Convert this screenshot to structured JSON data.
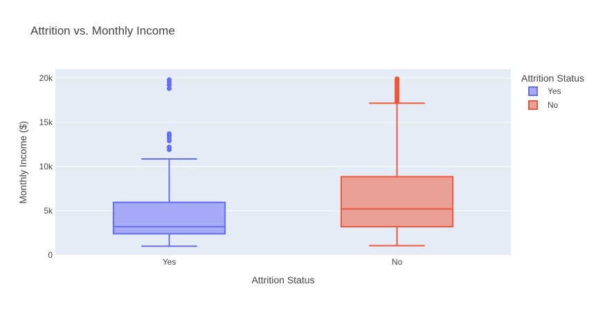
{
  "chart_data": {
    "type": "box",
    "title": "Attrition vs. Monthly Income",
    "xlabel": "Attrition Status",
    "ylabel": "Monthly Income ($)",
    "ylim": [
      0,
      21000
    ],
    "yticks": [
      {
        "value": 0,
        "label": "0"
      },
      {
        "value": 5000,
        "label": "5k"
      },
      {
        "value": 10000,
        "label": "10k"
      },
      {
        "value": 15000,
        "label": "15k"
      },
      {
        "value": 20000,
        "label": "20k"
      }
    ],
    "categories": [
      "Yes",
      "No"
    ],
    "legend": {
      "title": "Attrition Status",
      "placement": "top-right"
    },
    "grid": true,
    "series": [
      {
        "name": "Yes",
        "category": "Yes",
        "color": "#636efa",
        "fill": "#a5a9f6",
        "min": 1000,
        "q1": 2400,
        "median": 3200,
        "q3": 5950,
        "max": 10850,
        "outliers": [
          11900,
          12200,
          12900,
          13200,
          13500,
          13700,
          18800,
          19200,
          19500,
          19800
        ]
      },
      {
        "name": "No",
        "category": "No",
        "color": "#ef553b",
        "fill": "#eba095",
        "min": 1050,
        "q1": 3200,
        "median": 5200,
        "q3": 8850,
        "max": 17150,
        "outliers": [
          17300,
          17500,
          17700,
          17900,
          18100,
          18300,
          18500,
          18700,
          18900,
          19100,
          19300,
          19500,
          19700,
          19900
        ]
      }
    ]
  }
}
